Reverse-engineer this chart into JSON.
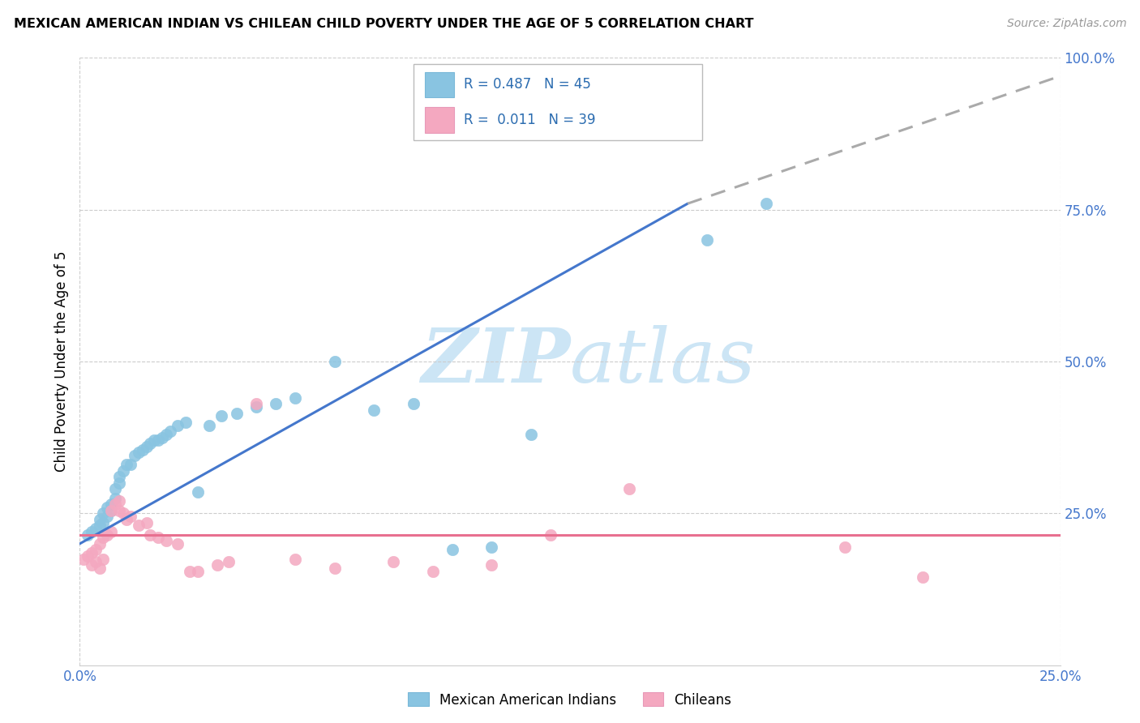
{
  "title": "MEXICAN AMERICAN INDIAN VS CHILEAN CHILD POVERTY UNDER THE AGE OF 5 CORRELATION CHART",
  "source": "Source: ZipAtlas.com",
  "ylabel": "Child Poverty Under the Age of 5",
  "xlim": [
    0.0,
    0.25
  ],
  "ylim": [
    0.0,
    1.0
  ],
  "ytick_vals": [
    0.25,
    0.5,
    0.75,
    1.0
  ],
  "ytick_labels": [
    "25.0%",
    "50.0%",
    "75.0%",
    "100.0%"
  ],
  "xtick_vals": [
    0.0,
    0.25
  ],
  "xtick_labels": [
    "0.0%",
    "25.0%"
  ],
  "legend_label1": "Mexican American Indians",
  "legend_label2": "Chileans",
  "R1": "0.487",
  "N1": "45",
  "R2": "0.011",
  "N2": "39",
  "color_blue": "#89c4e1",
  "color_pink": "#f4a8c0",
  "color_blue_line": "#4477cc",
  "color_pink_line": "#e87090",
  "color_dash": "#aaaaaa",
  "watermark_color": "#cce5f5",
  "blue_scatter_x": [
    0.002,
    0.003,
    0.004,
    0.005,
    0.005,
    0.006,
    0.006,
    0.007,
    0.007,
    0.008,
    0.008,
    0.009,
    0.009,
    0.01,
    0.01,
    0.011,
    0.012,
    0.013,
    0.014,
    0.015,
    0.016,
    0.017,
    0.018,
    0.019,
    0.02,
    0.021,
    0.022,
    0.023,
    0.025,
    0.027,
    0.03,
    0.033,
    0.036,
    0.04,
    0.045,
    0.05,
    0.055,
    0.065,
    0.075,
    0.085,
    0.095,
    0.105,
    0.115,
    0.16,
    0.175
  ],
  "blue_scatter_y": [
    0.215,
    0.22,
    0.225,
    0.23,
    0.24,
    0.235,
    0.25,
    0.245,
    0.26,
    0.255,
    0.265,
    0.275,
    0.29,
    0.3,
    0.31,
    0.32,
    0.33,
    0.33,
    0.345,
    0.35,
    0.355,
    0.36,
    0.365,
    0.37,
    0.37,
    0.375,
    0.38,
    0.385,
    0.395,
    0.4,
    0.285,
    0.395,
    0.41,
    0.415,
    0.425,
    0.43,
    0.44,
    0.5,
    0.42,
    0.43,
    0.19,
    0.195,
    0.38,
    0.7,
    0.76
  ],
  "pink_scatter_x": [
    0.001,
    0.002,
    0.003,
    0.003,
    0.004,
    0.004,
    0.005,
    0.005,
    0.006,
    0.006,
    0.007,
    0.008,
    0.008,
    0.009,
    0.01,
    0.01,
    0.011,
    0.012,
    0.013,
    0.015,
    0.017,
    0.018,
    0.02,
    0.022,
    0.025,
    0.028,
    0.03,
    0.035,
    0.038,
    0.045,
    0.055,
    0.065,
    0.08,
    0.09,
    0.105,
    0.12,
    0.14,
    0.195,
    0.215
  ],
  "pink_scatter_y": [
    0.175,
    0.18,
    0.165,
    0.185,
    0.19,
    0.17,
    0.16,
    0.2,
    0.21,
    0.175,
    0.215,
    0.22,
    0.255,
    0.265,
    0.27,
    0.255,
    0.25,
    0.24,
    0.245,
    0.23,
    0.235,
    0.215,
    0.21,
    0.205,
    0.2,
    0.155,
    0.155,
    0.165,
    0.17,
    0.43,
    0.175,
    0.16,
    0.17,
    0.155,
    0.165,
    0.215,
    0.29,
    0.195,
    0.145
  ],
  "blue_line_x": [
    0.0,
    0.155
  ],
  "blue_line_y": [
    0.2,
    0.76
  ],
  "dash_line_x": [
    0.155,
    0.25
  ],
  "dash_line_y": [
    0.76,
    0.97
  ],
  "pink_line_x": [
    0.0,
    0.25
  ],
  "pink_line_y": [
    0.215,
    0.215
  ]
}
